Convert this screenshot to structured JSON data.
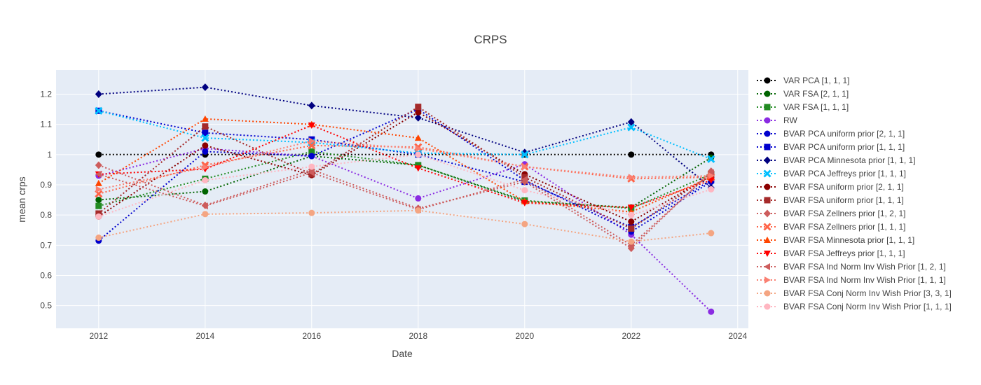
{
  "chart_data": {
    "type": "line",
    "title": "CRPS",
    "xlabel": "Date",
    "ylabel": "mean crps",
    "x": [
      2012,
      2014,
      2016,
      2018,
      2020,
      2022,
      2023.5
    ],
    "xlim": [
      2011.2,
      2024.2
    ],
    "ylim": [
      0.425,
      1.28
    ],
    "xticks": [
      2012,
      2014,
      2016,
      2018,
      2020,
      2022,
      2024
    ],
    "xticklabels": [
      "2012",
      "2014",
      "2016",
      "2018",
      "2020",
      "2022",
      "2024"
    ],
    "yticks": [
      0.5,
      0.6,
      0.7,
      0.8,
      0.9,
      1.0,
      1.1,
      1.2
    ],
    "yticklabels": [
      "0.5",
      "0.6",
      "0.7",
      "0.8",
      "0.9",
      "1",
      "1.1",
      "1.2"
    ],
    "grid": true,
    "legend_position": "right",
    "series": [
      {
        "name": "VAR PCA [1, 1, 1]",
        "color": "#000000",
        "marker": "circle",
        "values": [
          1.0,
          1.0,
          1.0,
          1.0,
          1.0,
          1.0,
          1.0
        ]
      },
      {
        "name": "VAR FSA [2, 1, 1]",
        "color": "#006400",
        "marker": "circle",
        "values": [
          0.85,
          0.878,
          0.995,
          0.965,
          0.845,
          0.825,
          0.99
        ]
      },
      {
        "name": "VAR FSA [1, 1, 1]",
        "color": "#228b22",
        "marker": "square",
        "values": [
          0.83,
          0.92,
          1.01,
          0.965,
          0.848,
          0.822,
          0.935
        ]
      },
      {
        "name": "RW",
        "color": "#8a2be2",
        "marker": "circle",
        "values": [
          0.93,
          1.02,
          0.995,
          0.855,
          0.968,
          0.735,
          0.48
        ]
      },
      {
        "name": "BVAR PCA uniform prior [2, 1, 1]",
        "color": "#0000cd",
        "marker": "circle",
        "values": [
          0.715,
          1.01,
          0.995,
          1.15,
          0.915,
          0.745,
          0.91
        ]
      },
      {
        "name": "BVAR PCA uniform prior [1, 1, 1]",
        "color": "#0000cd",
        "marker": "square",
        "values": [
          1.145,
          1.072,
          1.05,
          1.0,
          0.91,
          0.76,
          0.915
        ]
      },
      {
        "name": "BVAR PCA Minnesota prior [1, 1, 1]",
        "color": "#000080",
        "marker": "diamond",
        "values": [
          1.2,
          1.223,
          1.162,
          1.122,
          1.007,
          1.108,
          0.89
        ]
      },
      {
        "name": "BVAR PCA Jeffreys prior [1, 1, 1]",
        "color": "#00bfff",
        "marker": "x",
        "values": [
          1.145,
          1.055,
          1.04,
          1.005,
          1.0,
          1.09,
          0.985
        ]
      },
      {
        "name": "BVAR FSA uniform prior [2, 1, 1]",
        "color": "#8b0000",
        "marker": "circle",
        "values": [
          0.795,
          1.03,
          0.932,
          1.14,
          0.935,
          0.778,
          0.93
        ]
      },
      {
        "name": "BVAR FSA uniform prior [1, 1, 1]",
        "color": "#a52a2a",
        "marker": "square",
        "values": [
          0.805,
          1.093,
          0.935,
          1.158,
          0.925,
          0.755,
          0.935
        ]
      },
      {
        "name": "BVAR FSA Zellners prior [1, 2, 1]",
        "color": "#cd5c5c",
        "marker": "diamond",
        "values": [
          0.965,
          0.832,
          0.95,
          0.822,
          0.91,
          0.69,
          0.945
        ]
      },
      {
        "name": "BVAR FSA Zellners prior [1, 1, 1]",
        "color": "#ff6347",
        "marker": "x",
        "values": [
          0.87,
          0.965,
          1.03,
          1.025,
          0.96,
          0.92,
          0.925
        ]
      },
      {
        "name": "BVAR FSA Minnesota prior [1, 1, 1]",
        "color": "#ff4500",
        "marker": "triangle-up",
        "values": [
          0.905,
          1.118,
          1.1,
          1.055,
          0.845,
          0.81,
          0.925
        ]
      },
      {
        "name": "BVAR FSA Jeffreys prior [1, 1, 1]",
        "color": "#ff0000",
        "marker": "triangle-down",
        "values": [
          0.935,
          0.952,
          1.097,
          0.955,
          0.84,
          0.825,
          0.915
        ]
      },
      {
        "name": "BVAR FSA Ind Norm Inv Wish Prior [1, 2, 1]",
        "color": "#cd5c5c",
        "marker": "triangle-left",
        "values": [
          0.935,
          0.83,
          0.94,
          0.818,
          0.918,
          0.7,
          0.94
        ]
      },
      {
        "name": "BVAR FSA Ind Norm Inv Wish Prior [1, 1, 1]",
        "color": "#fa8072",
        "marker": "triangle-right",
        "values": [
          0.885,
          0.958,
          1.045,
          1.02,
          0.96,
          0.925,
          0.93
        ]
      },
      {
        "name": "BVAR FSA Conj Norm Inv Wish Prior [3, 3, 1]",
        "color": "#f4a582",
        "marker": "circle",
        "values": [
          0.725,
          0.803,
          0.807,
          0.815,
          0.77,
          0.712,
          0.74
        ]
      },
      {
        "name": "BVAR FSA Conj Norm Inv Wish Prior [1, 1, 1]",
        "color": "#ffb6c1",
        "marker": "circle",
        "values": [
          0.795,
          0.915,
          0.96,
          1.0,
          0.882,
          0.8,
          0.885
        ]
      }
    ]
  }
}
